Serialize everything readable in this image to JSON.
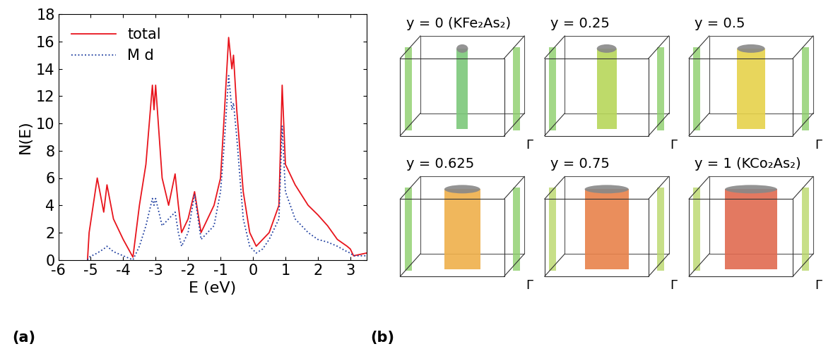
{
  "chart_data": {
    "type": "line",
    "x": [
      -5.1,
      -5.05,
      -4.8,
      -4.6,
      -4.5,
      -4.3,
      -4.0,
      -3.7,
      -3.5,
      -3.3,
      -3.1,
      -3.05,
      -3.0,
      -2.8,
      -2.6,
      -2.4,
      -2.3,
      -2.2,
      -2.0,
      -1.8,
      -1.6,
      -1.4,
      -1.2,
      -1.0,
      -0.9,
      -0.75,
      -0.65,
      -0.6,
      -0.5,
      -0.3,
      -0.1,
      0.1,
      0.3,
      0.5,
      0.8,
      0.9,
      1.0,
      1.3,
      1.7,
      2.0,
      2.3,
      2.6,
      2.9,
      3.0,
      3.1,
      3.5
    ],
    "series": [
      {
        "name": "total",
        "color": "#e8141c",
        "line_style": "solid",
        "values": [
          0,
          2,
          6,
          3.5,
          5.5,
          3,
          1.5,
          0.2,
          4,
          7,
          12.8,
          11,
          12.8,
          6,
          4,
          6.3,
          4,
          2,
          3,
          5,
          2,
          3,
          4,
          6,
          10,
          16.3,
          14,
          15,
          11,
          5,
          2,
          1,
          1.5,
          2,
          4,
          12.8,
          7,
          5.5,
          4,
          3.3,
          2.5,
          1.5,
          1,
          0.8,
          0.3,
          0.5
        ]
      },
      {
        "name": "M d",
        "color": "#1f3fa0",
        "line_style": "dotted",
        "values": [
          0,
          0.2,
          0.5,
          0.8,
          1,
          0.6,
          0.3,
          0,
          1,
          2.5,
          4.5,
          4,
          4.5,
          2.5,
          3,
          3.5,
          2,
          1,
          2,
          4.8,
          1.5,
          2,
          2.5,
          5,
          8,
          13.5,
          11,
          11.5,
          9,
          3,
          1,
          0.5,
          0.8,
          1.5,
          3,
          9.8,
          5,
          3,
          2,
          1.5,
          1.3,
          1,
          0.6,
          0.5,
          0.3,
          0.3
        ]
      }
    ],
    "x_label": "E (eV)",
    "y_label": "N(E)",
    "xlim": [
      -6,
      3.5
    ],
    "xticks": [
      -6,
      -5,
      -4,
      -3,
      -2,
      -1,
      0,
      1,
      2,
      3
    ],
    "ylim": [
      0,
      18
    ],
    "yticks": [
      0,
      2,
      4,
      6,
      8,
      10,
      12,
      14,
      16,
      18
    ],
    "legend": "upper left"
  },
  "panel_labels": [
    "(a)",
    "(b)"
  ],
  "fermi_surfaces": {
    "panels": [
      {
        "title": "y = 0 (KFe₂As₂)",
        "corner_label": "Γ"
      },
      {
        "title": "y = 0.25",
        "corner_label": "Γ"
      },
      {
        "title": "y = 0.5",
        "corner_label": "Γ"
      },
      {
        "title": "y = 0.625",
        "corner_label": "Γ"
      },
      {
        "title": "y = 0.75",
        "corner_label": "Γ"
      },
      {
        "title": "y = 1 (KCo₂As₂)",
        "corner_label": "Γ"
      }
    ]
  }
}
